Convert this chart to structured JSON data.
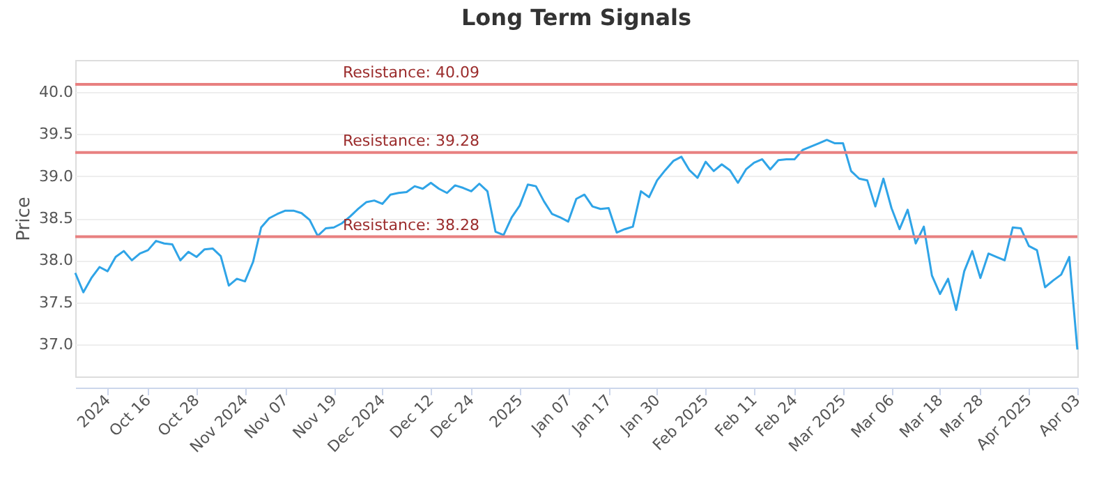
{
  "chart_data": {
    "type": "line",
    "title": "Long Term Signals",
    "ylabel": "Price",
    "categories": [
      null,
      null,
      null,
      null,
      "2024",
      null,
      null,
      null,
      null,
      "Oct 16",
      null,
      null,
      null,
      null,
      null,
      "Oct 28",
      null,
      null,
      null,
      null,
      null,
      "Nov 2024",
      null,
      null,
      null,
      null,
      "Nov 07",
      null,
      null,
      null,
      null,
      null,
      "Nov 19",
      null,
      null,
      null,
      null,
      null,
      "Dec 2024",
      null,
      null,
      null,
      null,
      null,
      "Dec 12",
      null,
      null,
      null,
      null,
      "Dec 24",
      null,
      null,
      null,
      null,
      null,
      "2025",
      null,
      null,
      null,
      null,
      null,
      "Jan 07",
      null,
      null,
      null,
      null,
      "Jan 17",
      null,
      null,
      null,
      null,
      null,
      "Jan 30",
      null,
      null,
      null,
      null,
      null,
      "Feb 2025",
      null,
      null,
      null,
      null,
      null,
      "Feb 11",
      null,
      null,
      null,
      null,
      "Feb 24",
      null,
      null,
      null,
      null,
      null,
      "Mar 2025",
      null,
      null,
      null,
      null,
      null,
      "Mar 06",
      null,
      null,
      null,
      null,
      null,
      "Mar 18",
      null,
      null,
      null,
      null,
      "Mar 28",
      null,
      null,
      null,
      null,
      null,
      "Apr 2025",
      null,
      null,
      null,
      null,
      null,
      "Apr 03"
    ],
    "series": [
      {
        "color": "#2fa4e7",
        "values": [
          37.85,
          37.62,
          37.79,
          37.92,
          37.87,
          38.04,
          38.11,
          38.0,
          38.08,
          38.12,
          38.23,
          38.2,
          38.19,
          38.0,
          38.1,
          38.04,
          38.13,
          38.14,
          38.05,
          37.7,
          37.78,
          37.75,
          37.98,
          38.39,
          38.5,
          38.55,
          38.59,
          38.59,
          38.56,
          38.48,
          38.29,
          38.38,
          38.39,
          38.44,
          38.52,
          38.61,
          38.69,
          38.71,
          38.67,
          38.78,
          38.8,
          38.81,
          38.88,
          38.85,
          38.92,
          38.85,
          38.8,
          38.89,
          38.86,
          38.82,
          38.91,
          38.82,
          38.34,
          38.3,
          38.51,
          38.65,
          38.9,
          38.88,
          38.7,
          38.55,
          38.51,
          38.46,
          38.73,
          38.78,
          38.64,
          38.61,
          38.62,
          38.33,
          38.37,
          38.4,
          38.82,
          38.75,
          38.95,
          39.07,
          39.18,
          39.23,
          39.07,
          38.98,
          39.17,
          39.06,
          39.14,
          39.07,
          38.92,
          39.08,
          39.16,
          39.2,
          39.08,
          39.19,
          39.2,
          39.2,
          39.31,
          39.35,
          39.39,
          39.43,
          39.39,
          39.39,
          39.06,
          38.97,
          38.95,
          38.64,
          38.97,
          38.62,
          38.37,
          38.6,
          38.2,
          38.4,
          37.82,
          37.6,
          37.78,
          37.41,
          37.87,
          38.11,
          37.79,
          38.08,
          38.04,
          38.0,
          38.39,
          38.38,
          38.17,
          38.12,
          37.68,
          37.76,
          37.83,
          38.04,
          36.94
        ]
      }
    ],
    "ylim": [
      36.62,
      40.38
    ],
    "yticks": [
      {
        "value": 37,
        "label": "37.0"
      },
      {
        "value": 37.5,
        "label": "37.5"
      },
      {
        "value": 38,
        "label": "38.0"
      },
      {
        "value": 38.5,
        "label": "38.5"
      },
      {
        "value": 39,
        "label": "39.0"
      },
      {
        "value": 39.5,
        "label": "39.5"
      },
      {
        "value": 40,
        "label": "40.0"
      }
    ],
    "grid": "y",
    "marker": "none",
    "line_style": "solid",
    "ref_lines": [
      {
        "axis": "y",
        "value": 40.09,
        "label": "Resistance: 40.09",
        "color": "#e88080"
      },
      {
        "axis": "y",
        "value": 39.28,
        "label": "Resistance: 39.28",
        "color": "#e88080"
      },
      {
        "axis": "y",
        "value": 38.28,
        "label": "Resistance: 38.28",
        "color": "#e88080"
      }
    ]
  }
}
